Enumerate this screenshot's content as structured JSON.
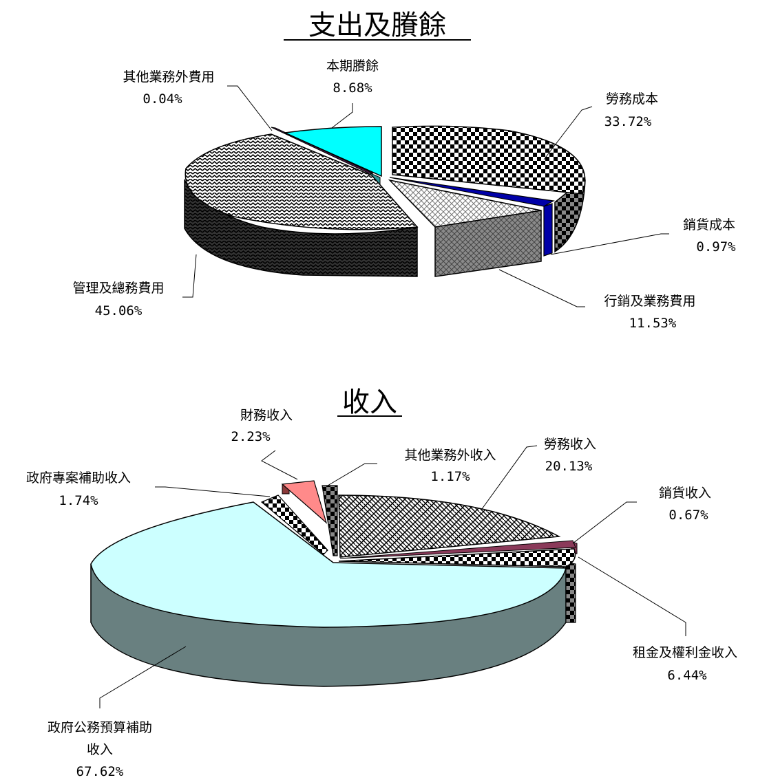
{
  "chart_data": [
    {
      "type": "pie",
      "title": "支出及賸餘",
      "slices": [
        {
          "label": "勞務成本",
          "percent_label": "33.72%",
          "value": 33.72
        },
        {
          "label": "銷貨成本",
          "percent_label": "0.97%",
          "value": 0.97
        },
        {
          "label": "行銷及業務費用",
          "percent_label": "11.53%",
          "value": 11.53
        },
        {
          "label": "管理及總務費用",
          "percent_label": "45.06%",
          "value": 45.06
        },
        {
          "label": "其他業務外費用",
          "percent_label": "0.04%",
          "value": 0.04
        },
        {
          "label": "本期賸餘",
          "percent_label": "8.68%",
          "value": 8.68
        }
      ],
      "colors": [
        "#000000",
        "#0000a8",
        "#9a9a9a",
        "#2a2a2a",
        "#4a1a4a",
        "#00ffff"
      ]
    },
    {
      "type": "pie",
      "title": "收入",
      "slices": [
        {
          "label": "勞務收入",
          "percent_label": "20.13%",
          "value": 20.13
        },
        {
          "label": "銷貨收入",
          "percent_label": "0.67%",
          "value": 0.67
        },
        {
          "label": "租金及權利金收入",
          "percent_label": "6.44%",
          "value": 6.44
        },
        {
          "label": "政府公務預算補助收入",
          "label_lines": [
            "政府公務預算補助",
            "收入"
          ],
          "percent_label": "67.62%",
          "value": 67.62
        },
        {
          "label": "政府專案補助收入",
          "percent_label": "1.74%",
          "value": 1.74
        },
        {
          "label": "財務收入",
          "percent_label": "2.23%",
          "value": 2.23
        },
        {
          "label": "其他業務外收入",
          "percent_label": "1.17%",
          "value": 1.17
        }
      ],
      "colors": [
        "#3a3a3a",
        "#8b3a5a",
        "#1a1a1a",
        "#ccffff",
        "#3a3a3a",
        "#ff8a8a",
        "#1a1a1a"
      ]
    }
  ]
}
